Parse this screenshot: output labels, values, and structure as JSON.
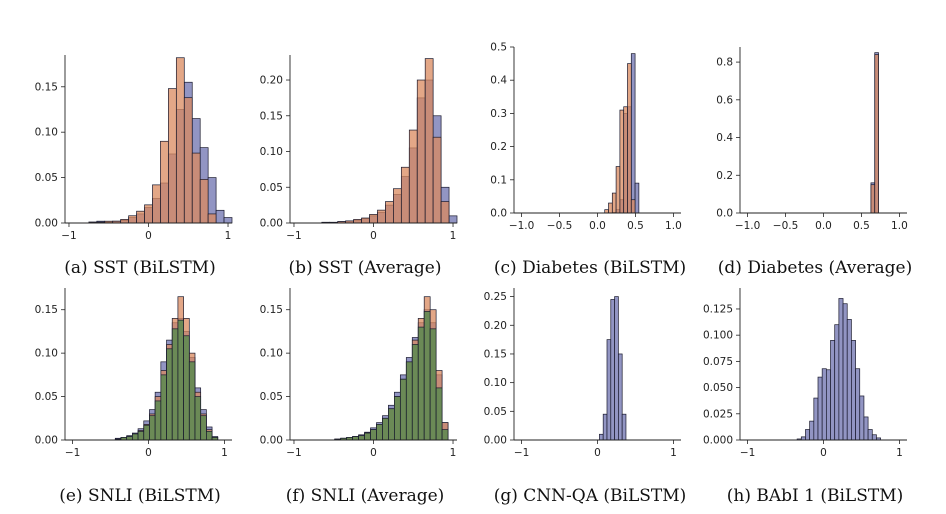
{
  "figure": {
    "colors": {
      "blue": "#8c8fc0",
      "orange": "#d98a5f",
      "overlap": "#a35a3c",
      "green": "#5a8a50",
      "edge": "#1a1a2e"
    }
  },
  "chart_data": [
    {
      "caption": "(a) SST (BiLSTM)",
      "type": "bar",
      "xlim": [
        -1.05,
        1.05
      ],
      "ylim": [
        0,
        0.185
      ],
      "xticks": [
        -1,
        0,
        1
      ],
      "xtick_labels": [
        "−1",
        "0",
        "1"
      ],
      "yticks": [
        0,
        0.05,
        0.1,
        0.15
      ],
      "ytick_labels": [
        "0.00",
        "0.05",
        "0.10",
        "0.15"
      ],
      "bin_width": 0.1,
      "series": [
        {
          "color": "blue",
          "x": [
            -0.7,
            -0.6,
            -0.5,
            -0.4,
            -0.3,
            -0.2,
            -0.1,
            0.0,
            0.1,
            0.2,
            0.3,
            0.4,
            0.5,
            0.6,
            0.7,
            0.8,
            0.9,
            1.0
          ],
          "values": [
            0.001,
            0.002,
            0.001,
            0.002,
            0.003,
            0.006,
            0.01,
            0.017,
            0.027,
            0.044,
            0.076,
            0.125,
            0.155,
            0.115,
            0.083,
            0.05,
            0.014,
            0.006
          ]
        },
        {
          "color": "orange",
          "x": [
            -0.7,
            -0.6,
            -0.5,
            -0.4,
            -0.3,
            -0.2,
            -0.1,
            0.0,
            0.1,
            0.2,
            0.3,
            0.4,
            0.5,
            0.6,
            0.7,
            0.8
          ],
          "values": [
            0.001,
            0.001,
            0.002,
            0.002,
            0.004,
            0.008,
            0.013,
            0.02,
            0.042,
            0.09,
            0.148,
            0.182,
            0.138,
            0.077,
            0.048,
            0.01
          ]
        }
      ]
    },
    {
      "caption": "(b) SST (Average)",
      "type": "bar",
      "xlim": [
        -1.05,
        1.05
      ],
      "ylim": [
        0,
        0.235
      ],
      "xticks": [
        -1,
        0,
        1
      ],
      "xtick_labels": [
        "−1",
        "0",
        "1"
      ],
      "yticks": [
        0,
        0.05,
        0.1,
        0.15,
        0.2
      ],
      "ytick_labels": [
        "0.00",
        "0.05",
        "0.10",
        "0.15",
        "0.20"
      ],
      "bin_width": 0.1,
      "series": [
        {
          "color": "blue",
          "x": [
            -0.6,
            -0.5,
            -0.4,
            -0.3,
            -0.2,
            -0.1,
            0.0,
            0.1,
            0.2,
            0.3,
            0.4,
            0.5,
            0.6,
            0.7,
            0.8,
            0.9,
            1.0
          ],
          "values": [
            0.001,
            0.001,
            0.002,
            0.003,
            0.004,
            0.006,
            0.01,
            0.015,
            0.025,
            0.04,
            0.065,
            0.105,
            0.175,
            0.2,
            0.15,
            0.05,
            0.01
          ]
        },
        {
          "color": "orange",
          "x": [
            -0.6,
            -0.5,
            -0.4,
            -0.3,
            -0.2,
            -0.1,
            0.0,
            0.1,
            0.2,
            0.3,
            0.4,
            0.5,
            0.6,
            0.7,
            0.8,
            0.9
          ],
          "values": [
            0.001,
            0.001,
            0.002,
            0.003,
            0.005,
            0.007,
            0.012,
            0.018,
            0.03,
            0.048,
            0.078,
            0.13,
            0.2,
            0.23,
            0.12,
            0.03
          ]
        }
      ]
    },
    {
      "caption": "(c) Diabetes (BiLSTM)",
      "type": "bar",
      "xlim": [
        -1.1,
        1.1
      ],
      "ylim": [
        0,
        0.5
      ],
      "xticks": [
        -1,
        -0.5,
        0,
        0.5,
        1.0
      ],
      "xtick_labels": [
        "−1.0",
        "−0.5",
        "0.0",
        "0.5",
        "1.0"
      ],
      "yticks": [
        0,
        0.1,
        0.2,
        0.3,
        0.4,
        0.5
      ],
      "ytick_labels": [
        "0.0",
        "0.1",
        "0.2",
        "0.3",
        "0.4",
        "0.5"
      ],
      "bin_width": 0.05,
      "series": [
        {
          "color": "blue",
          "x": [
            0.22,
            0.27,
            0.32,
            0.37,
            0.42,
            0.47,
            0.52
          ],
          "values": [
            0.002,
            0.01,
            0.04,
            0.3,
            0.32,
            0.48,
            0.09
          ]
        },
        {
          "color": "orange",
          "x": [
            0.12,
            0.17,
            0.22,
            0.27,
            0.32,
            0.37,
            0.42,
            0.47
          ],
          "values": [
            0.01,
            0.03,
            0.06,
            0.14,
            0.31,
            0.32,
            0.45,
            0.04
          ]
        }
      ]
    },
    {
      "caption": "(d) Diabetes (Average)",
      "type": "bar",
      "xlim": [
        -1.1,
        1.1
      ],
      "ylim": [
        0,
        0.88
      ],
      "xticks": [
        -1,
        -0.5,
        0,
        0.5,
        1.0
      ],
      "xtick_labels": [
        "−1.0",
        "−0.5",
        "0.0",
        "0.5",
        "1.0"
      ],
      "yticks": [
        0,
        0.2,
        0.4,
        0.6,
        0.8
      ],
      "ytick_labels": [
        "0.0",
        "0.2",
        "0.4",
        "0.6",
        "0.8"
      ],
      "bin_width": 0.05,
      "series": [
        {
          "color": "blue",
          "x": [
            0.65,
            0.7
          ],
          "values": [
            0.16,
            0.85
          ]
        },
        {
          "color": "orange",
          "x": [
            0.65,
            0.7
          ],
          "values": [
            0.15,
            0.84
          ]
        }
      ]
    },
    {
      "caption": "(e) SNLI (BiLSTM)",
      "type": "bar",
      "xlim": [
        -1.1,
        1.1
      ],
      "ylim": [
        0,
        0.175
      ],
      "xticks": [
        -1,
        0,
        1
      ],
      "xtick_labels": [
        "−1",
        "0",
        "1"
      ],
      "yticks": [
        0,
        0.05,
        0.1,
        0.15
      ],
      "ytick_labels": [
        "0.00",
        "0.05",
        "0.10",
        "0.15"
      ],
      "bin_width": 0.075,
      "series": [
        {
          "color": "blue",
          "x": [
            -0.4,
            -0.325,
            -0.25,
            -0.175,
            -0.1,
            -0.025,
            0.05,
            0.125,
            0.2,
            0.275,
            0.35,
            0.425,
            0.5,
            0.575,
            0.65,
            0.725,
            0.8,
            0.875
          ],
          "values": [
            0.002,
            0.003,
            0.005,
            0.008,
            0.013,
            0.022,
            0.035,
            0.055,
            0.09,
            0.115,
            0.135,
            0.14,
            0.125,
            0.095,
            0.06,
            0.035,
            0.015,
            0.004
          ]
        },
        {
          "color": "orange",
          "x": [
            -0.4,
            -0.325,
            -0.25,
            -0.175,
            -0.1,
            -0.025,
            0.05,
            0.125,
            0.2,
            0.275,
            0.35,
            0.425,
            0.5,
            0.575,
            0.65,
            0.725,
            0.8,
            0.875
          ],
          "values": [
            0.001,
            0.003,
            0.004,
            0.007,
            0.011,
            0.018,
            0.03,
            0.05,
            0.08,
            0.11,
            0.14,
            0.165,
            0.14,
            0.1,
            0.055,
            0.03,
            0.012,
            0.003
          ]
        },
        {
          "color": "green",
          "x": [
            -0.4,
            -0.325,
            -0.25,
            -0.175,
            -0.1,
            -0.025,
            0.05,
            0.125,
            0.2,
            0.275,
            0.35,
            0.425,
            0.5,
            0.575,
            0.65,
            0.725,
            0.8,
            0.875
          ],
          "values": [
            0.001,
            0.003,
            0.004,
            0.007,
            0.01,
            0.017,
            0.028,
            0.045,
            0.075,
            0.105,
            0.128,
            0.138,
            0.12,
            0.09,
            0.05,
            0.028,
            0.01,
            0.003
          ]
        }
      ]
    },
    {
      "caption": "(f) SNLI (Average)",
      "type": "bar",
      "xlim": [
        -1.05,
        1.05
      ],
      "ylim": [
        0,
        0.175
      ],
      "xticks": [
        -1,
        0,
        1
      ],
      "xtick_labels": [
        "−1",
        "0",
        "1"
      ],
      "yticks": [
        0,
        0.05,
        0.1,
        0.15
      ],
      "ytick_labels": [
        "0.00",
        "0.05",
        "0.10",
        "0.15"
      ],
      "bin_width": 0.075,
      "series": [
        {
          "color": "blue",
          "x": [
            -0.45,
            -0.375,
            -0.3,
            -0.225,
            -0.15,
            -0.075,
            0.0,
            0.075,
            0.15,
            0.225,
            0.3,
            0.375,
            0.45,
            0.525,
            0.6,
            0.675,
            0.75,
            0.825,
            0.9
          ],
          "values": [
            0.001,
            0.002,
            0.003,
            0.004,
            0.006,
            0.009,
            0.014,
            0.02,
            0.028,
            0.04,
            0.055,
            0.075,
            0.095,
            0.118,
            0.135,
            0.15,
            0.135,
            0.075,
            0.02
          ]
        },
        {
          "color": "orange",
          "x": [
            -0.45,
            -0.375,
            -0.3,
            -0.225,
            -0.15,
            -0.075,
            0.0,
            0.075,
            0.15,
            0.225,
            0.3,
            0.375,
            0.45,
            0.525,
            0.6,
            0.675,
            0.75,
            0.825,
            0.9
          ],
          "values": [
            0.001,
            0.002,
            0.003,
            0.004,
            0.005,
            0.008,
            0.012,
            0.018,
            0.025,
            0.036,
            0.05,
            0.07,
            0.09,
            0.115,
            0.14,
            0.165,
            0.15,
            0.08,
            0.02
          ]
        },
        {
          "color": "green",
          "x": [
            -0.45,
            -0.375,
            -0.3,
            -0.225,
            -0.15,
            -0.075,
            0.0,
            0.075,
            0.15,
            0.225,
            0.3,
            0.375,
            0.45,
            0.525,
            0.6,
            0.675,
            0.75,
            0.825,
            0.9
          ],
          "values": [
            0.001,
            0.002,
            0.003,
            0.004,
            0.005,
            0.008,
            0.012,
            0.018,
            0.025,
            0.036,
            0.05,
            0.07,
            0.09,
            0.11,
            0.13,
            0.148,
            0.128,
            0.06,
            0.012
          ]
        }
      ]
    },
    {
      "caption": "(g) CNN-QA (BiLSTM)",
      "type": "bar",
      "xlim": [
        -1.1,
        1.1
      ],
      "ylim": [
        0,
        0.265
      ],
      "xticks": [
        -1,
        0,
        1
      ],
      "xtick_labels": [
        "−1",
        "0",
        "1"
      ],
      "yticks": [
        0,
        0.05,
        0.1,
        0.15,
        0.2,
        0.25
      ],
      "ytick_labels": [
        "0.00",
        "0.05",
        "0.10",
        "0.15",
        "0.20",
        "0.25"
      ],
      "bin_width": 0.05,
      "series": [
        {
          "color": "blue",
          "x": [
            0.05,
            0.1,
            0.15,
            0.2,
            0.25,
            0.3,
            0.35
          ],
          "values": [
            0.01,
            0.045,
            0.175,
            0.245,
            0.25,
            0.15,
            0.045
          ]
        }
      ]
    },
    {
      "caption": "(h) BAbI 1 (BiLSTM)",
      "type": "bar",
      "xlim": [
        -1.1,
        1.1
      ],
      "ylim": [
        0,
        0.145
      ],
      "xticks": [
        -1,
        0,
        1
      ],
      "xtick_labels": [
        "−1",
        "0",
        "1"
      ],
      "yticks": [
        0,
        0.025,
        0.05,
        0.075,
        0.1,
        0.125
      ],
      "ytick_labels": [
        "0.000",
        "0.025",
        "0.050",
        "0.075",
        "0.100",
        "0.125"
      ],
      "bin_width": 0.055,
      "series": [
        {
          "color": "blue",
          "x": [
            -0.32,
            -0.265,
            -0.21,
            -0.155,
            -0.1,
            -0.045,
            0.01,
            0.065,
            0.12,
            0.175,
            0.23,
            0.285,
            0.34,
            0.395,
            0.45,
            0.505,
            0.56,
            0.615,
            0.67,
            0.725
          ],
          "values": [
            0.001,
            0.003,
            0.01,
            0.018,
            0.04,
            0.06,
            0.068,
            0.067,
            0.095,
            0.11,
            0.135,
            0.13,
            0.115,
            0.095,
            0.068,
            0.042,
            0.022,
            0.01,
            0.005,
            0.002
          ]
        }
      ]
    }
  ]
}
